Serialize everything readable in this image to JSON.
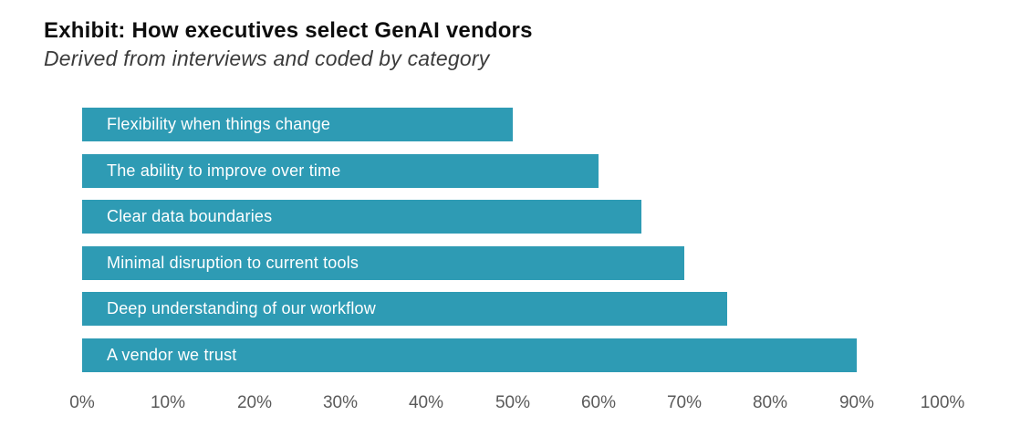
{
  "header": {
    "title": "Exhibit: How executives select GenAI vendors",
    "subtitle": "Derived from interviews and coded by category"
  },
  "chart_data": {
    "type": "bar",
    "orientation": "horizontal",
    "title": "Exhibit: How executives select GenAI vendors",
    "subtitle": "Derived from interviews and coded by category",
    "categories": [
      "Flexibility when things change",
      "The ability to improve over time",
      "Clear data boundaries",
      "Minimal disruption to current tools",
      "Deep understanding of our workflow",
      "A vendor we trust"
    ],
    "values": [
      50,
      60,
      65,
      70,
      75,
      90
    ],
    "unit": "%",
    "xlabel": "",
    "ylabel": "",
    "xlim": [
      0,
      100
    ],
    "xticks": [
      "0%",
      "10%",
      "20%",
      "30%",
      "40%",
      "50%",
      "60%",
      "70%",
      "80%",
      "90%",
      "100%"
    ],
    "grid": false,
    "legend": false,
    "value_labels_inside_bar": true,
    "colors": {
      "bar": "#2E9BB4",
      "bar_label": "#FFFFFF",
      "tick_label": "#5A5A5A",
      "title": "#0D0D0D",
      "subtitle": "#3B3B3B"
    }
  }
}
